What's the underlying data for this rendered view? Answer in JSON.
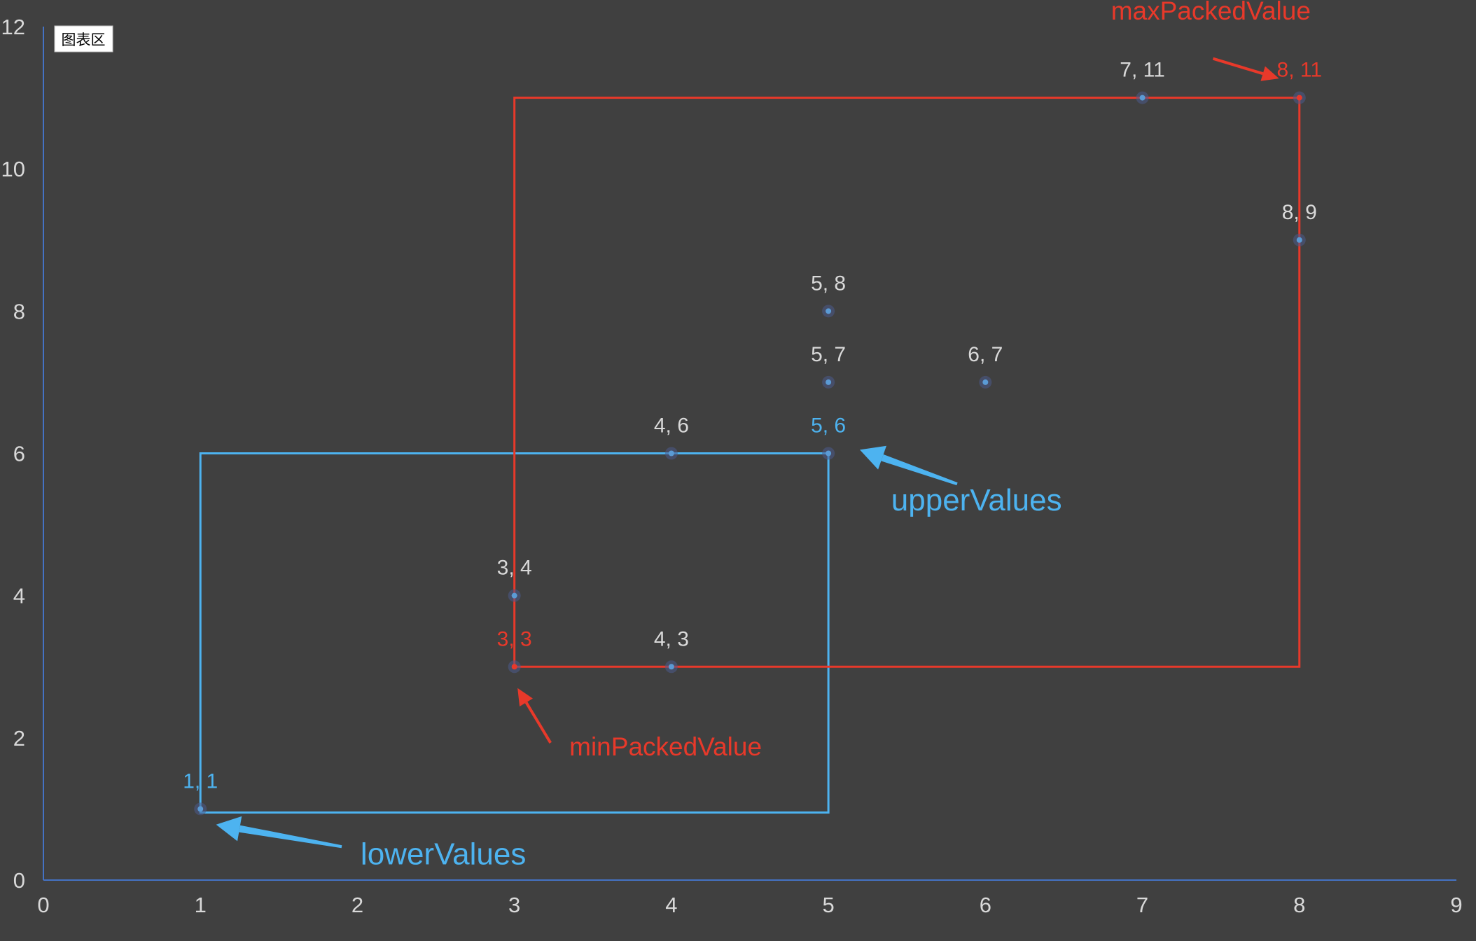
{
  "chart_area_tag": "图表区",
  "colors": {
    "background": "#404040",
    "axis": "#4472c4",
    "tick_text": "#d9d9d9",
    "point": "#5b9bd5",
    "default_label": "#d9d9d9",
    "red": "#e8392a",
    "blue": "#4db3f0"
  },
  "chart_data": {
    "type": "scatter",
    "xlim": [
      0,
      9
    ],
    "ylim": [
      0,
      12
    ],
    "x_ticks": [
      0,
      1,
      2,
      3,
      4,
      5,
      6,
      7,
      8,
      9
    ],
    "y_ticks": [
      0,
      2,
      4,
      6,
      8,
      10,
      12
    ],
    "grid": false,
    "points": [
      {
        "x": 1,
        "y": 1,
        "label": "1, 1",
        "color": "blue"
      },
      {
        "x": 3,
        "y": 3,
        "label": "3, 3",
        "color": "red"
      },
      {
        "x": 3,
        "y": 4,
        "label": "3, 4",
        "color": "default"
      },
      {
        "x": 4,
        "y": 3,
        "label": "4, 3",
        "color": "default"
      },
      {
        "x": 4,
        "y": 6,
        "label": "4, 6",
        "color": "default"
      },
      {
        "x": 5,
        "y": 6,
        "label": "5, 6",
        "color": "blue"
      },
      {
        "x": 5,
        "y": 7,
        "label": "5, 7",
        "color": "default"
      },
      {
        "x": 5,
        "y": 8,
        "label": "5, 8",
        "color": "default"
      },
      {
        "x": 6,
        "y": 7,
        "label": "6, 7",
        "color": "default"
      },
      {
        "x": 7,
        "y": 11,
        "label": "7, 11",
        "color": "default"
      },
      {
        "x": 8,
        "y": 9,
        "label": "8, 9",
        "color": "default"
      },
      {
        "x": 8,
        "y": 11,
        "label": "8, 11",
        "color": "red"
      }
    ],
    "rectangles": [
      {
        "name": "lower-upper-box",
        "x0": 1,
        "y0": 0.95,
        "x1": 5,
        "y1": 6,
        "color": "blue"
      },
      {
        "name": "packed-value-box",
        "x0": 3,
        "y0": 3,
        "x1": 8,
        "y1": 11,
        "color": "red"
      }
    ],
    "annotations": [
      {
        "text": "maxPackedValue",
        "color": "red",
        "size": "normal",
        "x": 6.8,
        "y": 12.1,
        "arrow_from": [
          7.45,
          11.55
        ],
        "arrow_to": [
          7.87,
          11.27
        ]
      },
      {
        "text": "upperValues",
        "color": "blue",
        "size": "big",
        "x": 5.4,
        "y": 5.2,
        "arrow_from": [
          5.82,
          5.57
        ],
        "arrow_to": [
          5.2,
          6.05
        ]
      },
      {
        "text": "minPackedValue",
        "color": "red",
        "size": "normal",
        "x": 3.35,
        "y": 1.75,
        "arrow_from": [
          3.23,
          1.93
        ],
        "arrow_to": [
          3.02,
          2.7
        ]
      },
      {
        "text": "lowerValues",
        "color": "blue",
        "size": "big",
        "x": 2.02,
        "y": 0.22,
        "arrow_from": [
          1.9,
          0.47
        ],
        "arrow_to": [
          1.1,
          0.78
        ]
      }
    ]
  }
}
